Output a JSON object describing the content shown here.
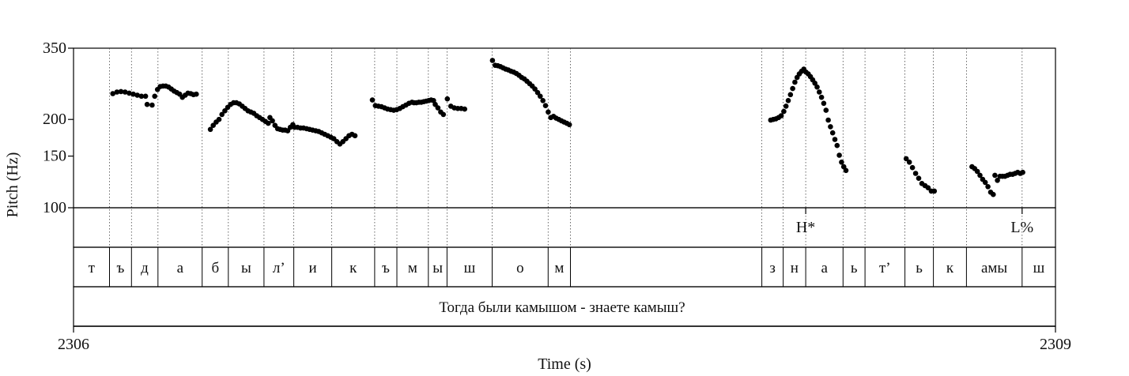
{
  "chart_data": {
    "type": "scatter",
    "xlabel": "Time (s)",
    "ylabel": "Pitch (Hz)",
    "xlim": [
      2306,
      2309
    ],
    "ylim": [
      100,
      350
    ],
    "y_scale": "log",
    "x_ticks": [
      "2306",
      "2309"
    ],
    "y_ticks": [
      {
        "value": 350,
        "label": "350"
      },
      {
        "value": 200,
        "label": "200"
      },
      {
        "value": 150,
        "label": "150"
      },
      {
        "value": 100,
        "label": "100"
      }
    ],
    "grid": false,
    "boundaries": [
      2306.11,
      2306.177,
      2306.258,
      2306.393,
      2306.473,
      2306.582,
      2306.673,
      2306.789,
      2306.92,
      2306.988,
      2307.084,
      2307.141,
      2307.279,
      2307.45,
      2307.518,
      2308.103,
      2308.168,
      2308.237,
      2308.351,
      2308.418,
      2308.54,
      2308.627,
      2308.728,
      2308.898
    ],
    "tones": [
      {
        "time": 2308.237,
        "label": "H*"
      },
      {
        "time": 2308.898,
        "label": "L%"
      }
    ],
    "segments": [
      {
        "start": 2306.0,
        "end": 2306.11,
        "label": "т"
      },
      {
        "start": 2306.11,
        "end": 2306.177,
        "label": "ъ"
      },
      {
        "start": 2306.177,
        "end": 2306.258,
        "label": "д"
      },
      {
        "start": 2306.258,
        "end": 2306.393,
        "label": "а"
      },
      {
        "start": 2306.393,
        "end": 2306.473,
        "label": "б"
      },
      {
        "start": 2306.473,
        "end": 2306.582,
        "label": "ы"
      },
      {
        "start": 2306.582,
        "end": 2306.673,
        "label": "л’"
      },
      {
        "start": 2306.673,
        "end": 2306.789,
        "label": "и"
      },
      {
        "start": 2306.789,
        "end": 2306.92,
        "label": "к"
      },
      {
        "start": 2306.92,
        "end": 2306.988,
        "label": "ъ"
      },
      {
        "start": 2306.988,
        "end": 2307.084,
        "label": "м"
      },
      {
        "start": 2307.084,
        "end": 2307.141,
        "label": "ы"
      },
      {
        "start": 2307.141,
        "end": 2307.279,
        "label": "ш"
      },
      {
        "start": 2307.279,
        "end": 2307.45,
        "label": "о"
      },
      {
        "start": 2307.45,
        "end": 2307.518,
        "label": "м"
      },
      {
        "start": 2308.103,
        "end": 2308.168,
        "label": "з"
      },
      {
        "start": 2308.168,
        "end": 2308.237,
        "label": "н"
      },
      {
        "start": 2308.237,
        "end": 2308.351,
        "label": "а"
      },
      {
        "start": 2308.351,
        "end": 2308.418,
        "label": "ь"
      },
      {
        "start": 2308.418,
        "end": 2308.54,
        "label": "т’"
      },
      {
        "start": 2308.54,
        "end": 2308.627,
        "label": "ь"
      },
      {
        "start": 2308.627,
        "end": 2308.728,
        "label": "к"
      },
      {
        "start": 2308.728,
        "end": 2308.898,
        "label": "амы"
      },
      {
        "start": 2308.898,
        "end": 2309.0,
        "label": "ш"
      }
    ],
    "sentence": "Тогда были камышом - знаете камыш?",
    "pitch_contours": [
      {
        "t0": 2306.12,
        "t1": 2306.22,
        "hz": [
          245,
          248,
          249,
          248,
          246,
          244,
          242,
          240,
          240
        ]
      },
      {
        "t0": 2306.225,
        "t1": 2306.24,
        "hz": [
          225,
          224
        ]
      },
      {
        "t0": 2306.248,
        "t1": 2306.375,
        "hz": [
          240,
          253,
          259,
          260,
          260,
          258,
          254,
          250,
          247,
          244,
          238,
          242,
          246,
          245,
          243,
          244
        ]
      },
      {
        "t0": 2306.418,
        "t1": 2306.595,
        "hz": [
          185,
          191,
          196,
          200,
          208,
          214,
          220,
          225,
          228,
          228,
          226,
          222,
          218,
          214,
          212,
          210,
          206,
          203,
          200,
          197,
          194
        ]
      },
      {
        "t0": 2306.6,
        "t1": 2306.67,
        "hz": [
          203,
          198,
          191,
          186,
          185,
          184,
          184,
          183,
          188,
          192
        ]
      },
      {
        "t0": 2306.675,
        "t1": 2306.86,
        "hz": [
          188,
          188,
          187,
          187,
          186,
          185,
          184,
          183,
          182,
          180,
          178,
          176,
          174,
          172,
          168,
          165,
          168,
          172,
          176,
          178,
          176
        ]
      },
      {
        "t0": 2306.913,
        "t1": 2307.034,
        "hz": [
          233,
          223,
          222,
          221,
          219,
          217,
          216,
          215,
          216,
          218,
          221,
          224,
          227,
          229
        ]
      },
      {
        "t0": 2307.04,
        "t1": 2307.1,
        "hz": [
          228,
          228,
          229,
          229,
          230,
          231,
          232,
          233,
          232
        ]
      },
      {
        "t0": 2307.105,
        "t1": 2307.13,
        "hz": [
          225,
          219,
          212,
          208
        ]
      },
      {
        "t0": 2307.142,
        "t1": 2307.195,
        "hz": [
          235,
          222,
          219,
          218,
          218,
          217
        ]
      },
      {
        "t0": 2307.28,
        "t1": 2307.515,
        "hz": [
          318,
          306,
          305,
          303,
          300,
          297,
          295,
          292,
          290,
          287,
          283,
          278,
          275,
          270,
          265,
          260,
          254,
          247,
          240,
          232,
          223,
          212,
          203,
          205,
          202,
          200,
          198,
          196,
          194,
          192
        ]
      },
      {
        "t0": 2308.13,
        "t1": 2308.162,
        "hz": [
          199,
          200,
          201,
          203,
          206
        ]
      },
      {
        "t0": 2308.17,
        "t1": 2308.36,
        "hz": [
          213,
          222,
          232,
          243,
          255,
          268,
          278,
          286,
          292,
          297,
          290,
          286,
          280,
          273,
          266,
          258,
          248,
          238,
          227,
          215,
          199,
          189,
          180,
          171,
          163,
          151,
          143,
          138,
          134
        ]
      },
      {
        "t0": 2308.544,
        "t1": 2308.63,
        "hz": [
          147,
          143,
          137,
          131,
          126,
          121,
          119,
          117,
          114,
          114
        ]
      },
      {
        "t0": 2308.745,
        "t1": 2308.81,
        "hz": [
          138,
          136,
          133,
          129,
          125,
          122,
          118,
          113,
          111
        ]
      },
      {
        "t0": 2308.815,
        "t1": 2308.9,
        "hz": [
          129,
          124,
          128,
          128,
          128,
          129,
          130,
          130,
          131,
          132,
          131,
          132
        ]
      }
    ]
  }
}
